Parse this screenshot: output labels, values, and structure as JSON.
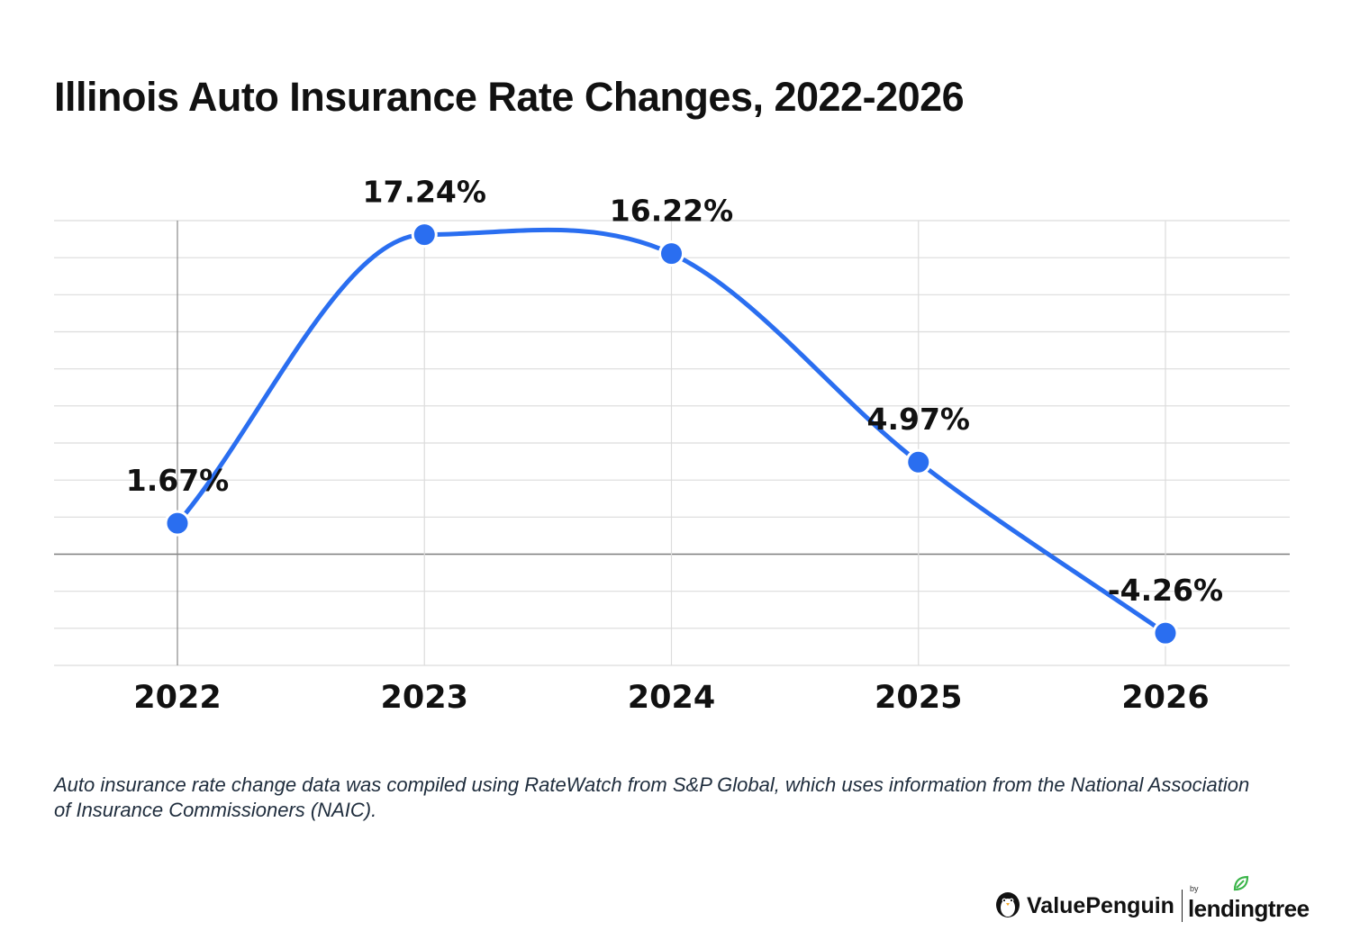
{
  "chart_data": {
    "type": "line",
    "title": "Illinois Auto Insurance Rate Changes, 2022-2026",
    "categories": [
      "2022",
      "2023",
      "2024",
      "2025",
      "2026"
    ],
    "values": [
      1.67,
      17.24,
      16.22,
      4.97,
      -4.26
    ],
    "data_labels": [
      "1.67%",
      "17.24%",
      "16.22%",
      "4.97%",
      "-4.26%"
    ],
    "ylim": [
      -6,
      18
    ],
    "smooth": true,
    "grid": true,
    "line_color": "#2a6ef0"
  },
  "footnote": "Auto insurance rate change data was compiled using RateWatch from S&P Global, which uses information from the National Association of Insurance Commissioners (NAIC).",
  "branding": {
    "brand_name": "ValuePenguin",
    "by_text": "by",
    "partner_name": "lendingtree",
    "brand_icon": "penguin-icon",
    "partner_icon": "leaf-icon",
    "partner_color": "#3bb54a"
  }
}
